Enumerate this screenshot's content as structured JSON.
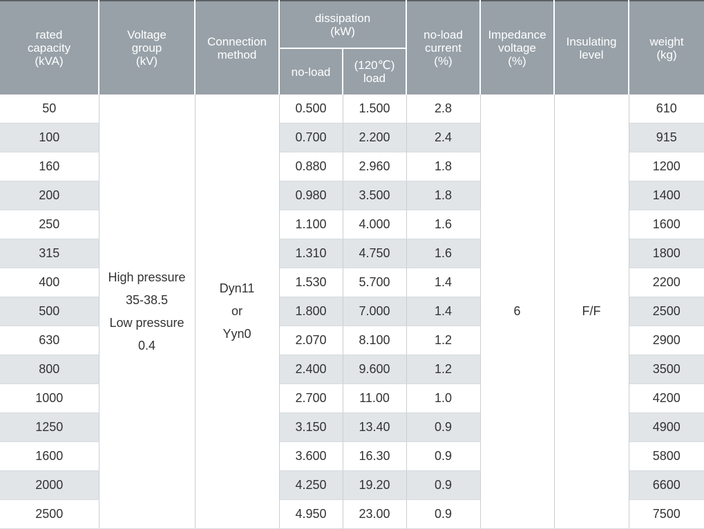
{
  "header": {
    "rated_capacity": [
      "rated",
      "capacity",
      "(kVA)"
    ],
    "voltage_group": [
      "Voltage",
      "group",
      "(kV)"
    ],
    "connection_method": [
      "Connection",
      "method"
    ],
    "dissipation": [
      "dissipation",
      "(kW)"
    ],
    "no_load": "no-load",
    "load": [
      "(120℃)",
      "load"
    ],
    "no_load_current": [
      "no-load",
      "current",
      "(%)"
    ],
    "impedance_voltage": [
      "Impedance",
      "voltage",
      "(%)"
    ],
    "insulating_level": [
      "Insulating",
      "level"
    ],
    "weight": [
      "weight",
      "(kg)"
    ]
  },
  "merged": {
    "voltage_group": [
      "High pressure",
      "35-38.5",
      "Low pressure",
      "0.4"
    ],
    "connection_method": [
      "Dyn11",
      "or",
      "Yyn0"
    ],
    "impedance_voltage": "6",
    "insulating_level": "F/F"
  },
  "rows": [
    {
      "capacity": "50",
      "no_load": "0.500",
      "load": "1.500",
      "current": "2.8",
      "weight": "610"
    },
    {
      "capacity": "100",
      "no_load": "0.700",
      "load": "2.200",
      "current": "2.4",
      "weight": "915"
    },
    {
      "capacity": "160",
      "no_load": "0.880",
      "load": "2.960",
      "current": "1.8",
      "weight": "1200"
    },
    {
      "capacity": "200",
      "no_load": "0.980",
      "load": "3.500",
      "current": "1.8",
      "weight": "1400"
    },
    {
      "capacity": "250",
      "no_load": "1.100",
      "load": "4.000",
      "current": "1.6",
      "weight": "1600"
    },
    {
      "capacity": "315",
      "no_load": "1.310",
      "load": "4.750",
      "current": "1.6",
      "weight": "1800"
    },
    {
      "capacity": "400",
      "no_load": "1.530",
      "load": "5.700",
      "current": "1.4",
      "weight": "2200"
    },
    {
      "capacity": "500",
      "no_load": "1.800",
      "load": "7.000",
      "current": "1.4",
      "weight": "2500"
    },
    {
      "capacity": "630",
      "no_load": "2.070",
      "load": "8.100",
      "current": "1.2",
      "weight": "2900"
    },
    {
      "capacity": "800",
      "no_load": "2.400",
      "load": "9.600",
      "current": "1.2",
      "weight": "3500"
    },
    {
      "capacity": "1000",
      "no_load": "2.700",
      "load": "11.00",
      "current": "1.0",
      "weight": "4200"
    },
    {
      "capacity": "1250",
      "no_load": "3.150",
      "load": "13.40",
      "current": "0.9",
      "weight": "4900"
    },
    {
      "capacity": "1600",
      "no_load": "3.600",
      "load": "16.30",
      "current": "0.9",
      "weight": "5800"
    },
    {
      "capacity": "2000",
      "no_load": "4.250",
      "load": "19.20",
      "current": "0.9",
      "weight": "6600"
    },
    {
      "capacity": "2500",
      "no_load": "4.950",
      "load": "23.00",
      "current": "0.9",
      "weight": "7500"
    }
  ]
}
